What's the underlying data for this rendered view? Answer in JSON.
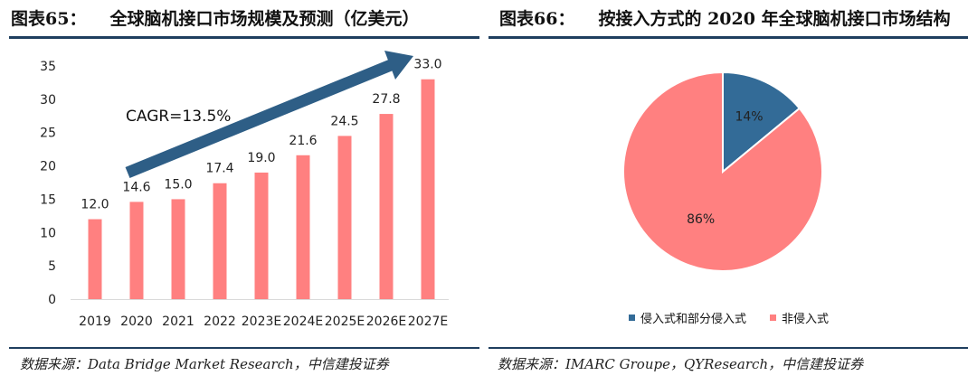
{
  "left": {
    "figure_label": "图表65：",
    "figure_title": "全球脑机接口市场规模及预测（亿美元）",
    "cagr_label": "CAGR=13.5%",
    "source": "数据来源：Data Bridge Market Research，中信建投证券",
    "colors": {
      "bar": "#ff8080",
      "arrow": "#2e5e86",
      "rule": "#1f3f5f"
    }
  },
  "right": {
    "figure_label": "图表66：",
    "figure_title": "按接入方式的 2020 年全球脑机接口市场结构",
    "source": "数据来源：IMARC Groupe，QYResearch，中信建投证券",
    "legend": [
      "侵入式和部分侵入式",
      "非侵入式"
    ],
    "colors": {
      "invasive": "#336b97",
      "noninvasive": "#ff8080"
    }
  },
  "chart_data": [
    {
      "type": "bar",
      "title": "全球脑机接口市场规模及预测（亿美元）",
      "categories": [
        "2019",
        "2020",
        "2021",
        "2022",
        "2023E",
        "2024E",
        "2025E",
        "2026E",
        "2027E"
      ],
      "values": [
        12.0,
        14.6,
        15.0,
        17.4,
        19.0,
        21.6,
        24.5,
        27.8,
        33.0
      ],
      "data_labels": [
        "12.0",
        "14.6",
        "15.0",
        "17.4",
        "19.0",
        "21.6",
        "24.5",
        "27.8",
        "33.0"
      ],
      "ylim": [
        0,
        35
      ],
      "yticks": [
        "0",
        "5",
        "10",
        "15",
        "20",
        "25",
        "30",
        "35"
      ],
      "annotation": "CAGR=13.5%",
      "grid": false
    },
    {
      "type": "pie",
      "title": "按接入方式的 2020 年全球脑机接口市场结构",
      "labels": [
        "侵入式和部分侵入式",
        "非侵入式"
      ],
      "values": [
        14,
        86
      ],
      "data_labels": [
        "14%",
        "86%"
      ],
      "legend_position": "bottom"
    }
  ]
}
